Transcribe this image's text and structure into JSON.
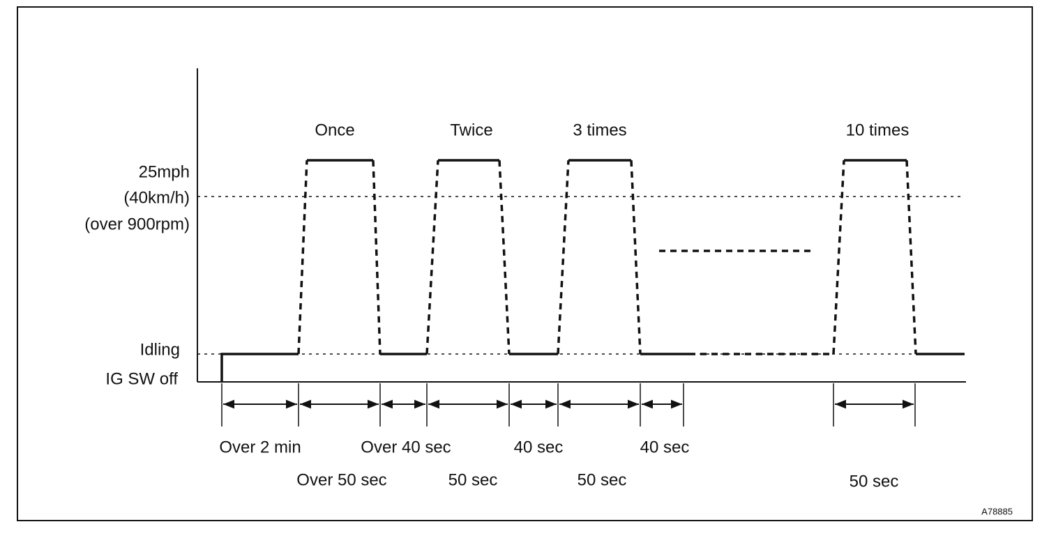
{
  "y_labels": {
    "high": [
      "25mph",
      "(40km/h)",
      "(over 900rpm)"
    ],
    "idle": "Idling",
    "off": "IG SW off"
  },
  "cycles": [
    "Once",
    "Twice",
    "3 times",
    "10 times"
  ],
  "intervals_top": [
    "Over 2 min",
    "Over 40 sec",
    "40 sec",
    "40 sec"
  ],
  "intervals_bottom": [
    "Over 50 sec",
    "50 sec",
    "50 sec",
    "50 sec"
  ],
  "figure_id": "A78885"
}
